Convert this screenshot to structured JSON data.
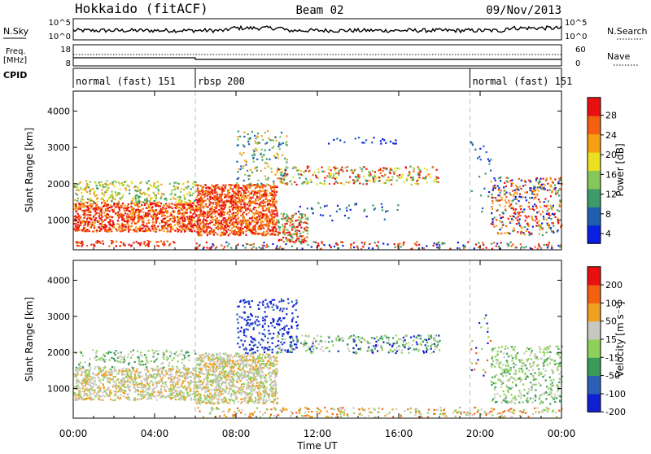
{
  "header": {
    "station": "Hokkaido (fitACF)",
    "beam": "Beam 02",
    "date": "09/Nov/2013"
  },
  "top_panels": {
    "nsky_label": "N.Sky",
    "nsky_ticks": [
      "10^5",
      "10^0"
    ],
    "nsearch_label": "N.Search",
    "nsearch_ticks": [
      "10^5",
      "10^0"
    ],
    "freq_label": [
      "Freq.",
      "[MHz]"
    ],
    "freq_ticks": [
      "18",
      "8"
    ],
    "nave_label": "Nave",
    "nave_ticks": [
      "60",
      "0"
    ],
    "cpid_label": "CPID",
    "cpid_segments": [
      {
        "label": "normal (fast) 151",
        "start_h": 0,
        "end_h": 6
      },
      {
        "label": "rbsp 200",
        "start_h": 6,
        "end_h": 19.5
      },
      {
        "label": "normal (fast) 151",
        "start_h": 19.5,
        "end_h": 24
      }
    ]
  },
  "chart_data": [
    {
      "type": "heatmap",
      "title": "",
      "xlabel": "Time UT",
      "ylabel": "Slant Range [km]",
      "x_ticks": [
        "00:00",
        "04:00",
        "08:00",
        "12:00",
        "16:00",
        "20:00",
        "00:00"
      ],
      "xlim_hours": [
        0,
        24
      ],
      "y_ticks": [
        1000,
        2000,
        3000,
        4000
      ],
      "ylim": [
        180,
        4550
      ],
      "colorbar": {
        "label": "Power [dB]",
        "ticks": [
          "28",
          "24",
          "20",
          "16",
          "12",
          "8",
          "4"
        ],
        "colors": [
          "#0a1fe0",
          "#1f5fb0",
          "#3f9a6a",
          "#86c75a",
          "#e8e020",
          "#f4a010",
          "#f26010",
          "#e81010"
        ]
      }
    },
    {
      "type": "heatmap",
      "title": "",
      "xlabel": "Time UT",
      "ylabel": "Slant Range [km]",
      "x_ticks": [
        "00:00",
        "04:00",
        "08:00",
        "12:00",
        "16:00",
        "20:00",
        "00:00"
      ],
      "xlim_hours": [
        0,
        24
      ],
      "y_ticks": [
        1000,
        2000,
        3000,
        4000
      ],
      "ylim": [
        180,
        4550
      ],
      "colorbar": {
        "label": "Velocity [m s⁻¹]",
        "ticks": [
          "200",
          "100",
          "50",
          "15",
          "-15",
          "-50",
          "-100",
          "-200"
        ],
        "colors": [
          "#1020d0",
          "#2a60b8",
          "#3a9a5a",
          "#8ed05a",
          "#c8c8c0",
          "#f0a020",
          "#f26010",
          "#e81010"
        ]
      }
    }
  ]
}
